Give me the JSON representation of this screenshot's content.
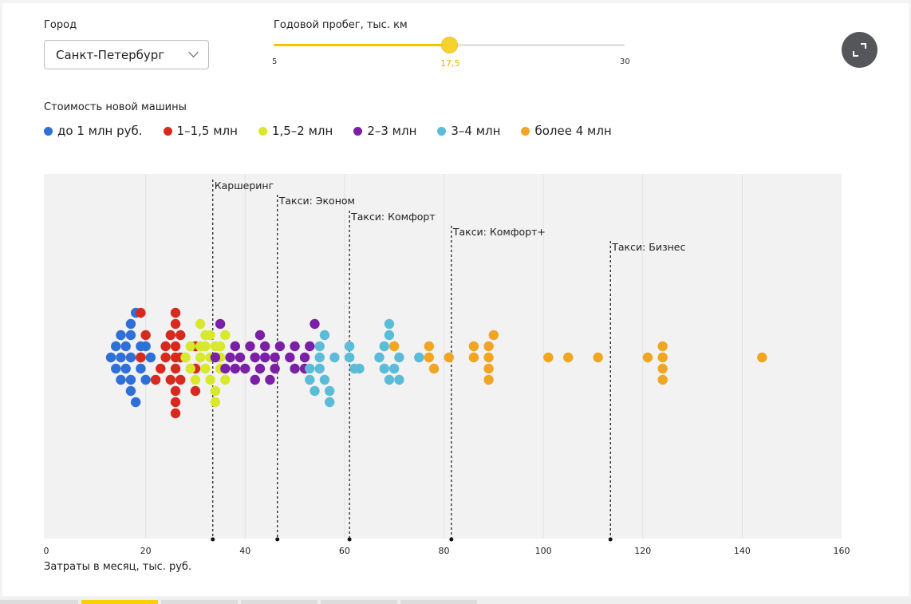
{
  "controls": {
    "city_label": "Город",
    "city_value": "Санкт-Петербург",
    "mileage_label": "Годовой пробег, тыс. км",
    "mileage_min": 5,
    "mileage_max": 30,
    "mileage_value": 17.5,
    "mileage_min_label": "5",
    "mileage_max_label": "30",
    "mileage_value_label": "17,5"
  },
  "legend": {
    "title": "Стоимость новой машины",
    "items": [
      {
        "key": "lt1",
        "label": "до 1 млн руб.",
        "color": "#2f6fd8"
      },
      {
        "key": "1_15",
        "label": "1–1,5 млн",
        "color": "#d62a1f"
      },
      {
        "key": "15_2",
        "label": "1,5–2 млн",
        "color": "#d8e82b"
      },
      {
        "key": "2_3",
        "label": "2–3 млн",
        "color": "#7a1fa6"
      },
      {
        "key": "3_4",
        "label": "3–4 млн",
        "color": "#5bbcd8"
      },
      {
        "key": "gt4",
        "label": "более 4 млн",
        "color": "#f0a623"
      }
    ]
  },
  "expand_button": {
    "icon": "expand-icon"
  },
  "chart_data": {
    "type": "scatter",
    "subtype": "beeswarm",
    "title": "",
    "xlabel": "Затраты в месяц, тыс. руб.",
    "ylabel": "",
    "xlim": [
      0,
      160
    ],
    "xticks": [
      0,
      20,
      40,
      60,
      80,
      100,
      120,
      140,
      160
    ],
    "grid": true,
    "reference_lines": [
      {
        "label": "Каршеринг",
        "x": 33.5
      },
      {
        "label": "Такси: Эконом",
        "x": 46.5
      },
      {
        "label": "Такси: Комфорт",
        "x": 61
      },
      {
        "label": "Такси: Комфорт+",
        "x": 81.5
      },
      {
        "label": "Такси: Бизнес",
        "x": 113.5
      }
    ],
    "series": [
      {
        "name": "до 1 млн руб.",
        "key": "lt1",
        "points": [
          [
            13,
            0
          ],
          [
            14,
            1
          ],
          [
            14,
            -1
          ],
          [
            15,
            2
          ],
          [
            15,
            0
          ],
          [
            15,
            -2
          ],
          [
            16,
            -1
          ],
          [
            16,
            1
          ],
          [
            17,
            -3
          ],
          [
            17,
            3
          ],
          [
            17,
            0
          ],
          [
            17,
            -2
          ],
          [
            17,
            2
          ],
          [
            18,
            -4
          ],
          [
            18,
            4
          ],
          [
            19,
            0
          ],
          [
            19,
            1
          ],
          [
            19,
            -1
          ],
          [
            20,
            2
          ],
          [
            20,
            -1
          ],
          [
            21,
            0
          ]
        ]
      },
      {
        "name": "1–1,5 млн",
        "key": "1_15",
        "points": [
          [
            19,
            -4
          ],
          [
            19,
            0
          ],
          [
            20,
            -2
          ],
          [
            22,
            2
          ],
          [
            23,
            1
          ],
          [
            24,
            0
          ],
          [
            24,
            -1
          ],
          [
            25,
            2
          ],
          [
            25,
            -2
          ],
          [
            26,
            1
          ],
          [
            26,
            3
          ],
          [
            26,
            -3
          ],
          [
            26,
            4
          ],
          [
            26,
            -4
          ],
          [
            26,
            5
          ],
          [
            26,
            0
          ],
          [
            26,
            -1
          ],
          [
            27,
            2
          ],
          [
            27,
            0
          ],
          [
            27,
            -2
          ],
          [
            30,
            1
          ],
          [
            30,
            -1
          ],
          [
            30,
            3
          ]
        ]
      },
      {
        "name": "1,5–2 млн",
        "key": "1_15b",
        "display": "1,5–2 млн",
        "points": []
      },
      {
        "name": "1,5–2 млн",
        "key": "15_2",
        "points": [
          [
            28,
            0
          ],
          [
            29,
            1
          ],
          [
            29,
            -1
          ],
          [
            30,
            2
          ],
          [
            31,
            0
          ],
          [
            31,
            -1
          ],
          [
            31,
            -3
          ],
          [
            32,
            1
          ],
          [
            32,
            -2
          ],
          [
            33,
            0
          ],
          [
            33,
            2
          ],
          [
            33,
            -2
          ],
          [
            34,
            3
          ],
          [
            34,
            4
          ],
          [
            34,
            -1
          ],
          [
            35,
            1
          ],
          [
            35,
            -1
          ],
          [
            35,
            0
          ],
          [
            36,
            2
          ],
          [
            36,
            -2
          ],
          [
            32,
            -1
          ]
        ]
      },
      {
        "name": "2–3 млн",
        "key": "2_3",
        "points": [
          [
            34,
            0
          ],
          [
            35,
            -3
          ],
          [
            36,
            1
          ],
          [
            37,
            0
          ],
          [
            38,
            -1
          ],
          [
            38,
            1
          ],
          [
            39,
            0
          ],
          [
            40,
            1
          ],
          [
            41,
            -1
          ],
          [
            42,
            0
          ],
          [
            42,
            2
          ],
          [
            43,
            1
          ],
          [
            43,
            -2
          ],
          [
            44,
            0
          ],
          [
            44,
            -1
          ],
          [
            45,
            2
          ],
          [
            46,
            1
          ],
          [
            46,
            0
          ],
          [
            47,
            -1
          ],
          [
            49,
            0
          ],
          [
            50,
            1
          ],
          [
            50,
            -1
          ],
          [
            52,
            0
          ],
          [
            52,
            1
          ],
          [
            54,
            -3
          ],
          [
            53,
            -1
          ]
        ]
      },
      {
        "name": "3–4 млн",
        "key": "3_4",
        "points": [
          [
            53,
            1
          ],
          [
            53,
            2
          ],
          [
            54,
            3
          ],
          [
            55,
            0
          ],
          [
            55,
            -1
          ],
          [
            55,
            1
          ],
          [
            56,
            2
          ],
          [
            56,
            -2
          ],
          [
            57,
            3
          ],
          [
            57,
            4
          ],
          [
            58,
            0
          ],
          [
            61,
            0
          ],
          [
            61,
            -1
          ],
          [
            63,
            1
          ],
          [
            67,
            0
          ],
          [
            68,
            1
          ],
          [
            68,
            -1
          ],
          [
            69,
            2
          ],
          [
            69,
            -2
          ],
          [
            70,
            1
          ],
          [
            71,
            0
          ],
          [
            71,
            2
          ],
          [
            69,
            -3
          ],
          [
            75,
            0
          ],
          [
            62,
            1
          ]
        ]
      },
      {
        "name": "более 4 млн",
        "key": "gt4",
        "points": [
          [
            70,
            -1
          ],
          [
            77,
            0
          ],
          [
            77,
            -1
          ],
          [
            78,
            1
          ],
          [
            81,
            0
          ],
          [
            86,
            0
          ],
          [
            86,
            -1
          ],
          [
            89,
            0
          ],
          [
            89,
            1
          ],
          [
            89,
            -1
          ],
          [
            89,
            2
          ],
          [
            90,
            -2
          ],
          [
            101,
            0
          ],
          [
            105,
            0
          ],
          [
            111,
            0
          ],
          [
            121,
            0
          ],
          [
            124,
            0
          ],
          [
            124,
            1
          ],
          [
            124,
            -1
          ],
          [
            124,
            2
          ],
          [
            144,
            0
          ]
        ]
      }
    ]
  },
  "bottom_strip": {
    "active_index": 1,
    "count": 6
  }
}
